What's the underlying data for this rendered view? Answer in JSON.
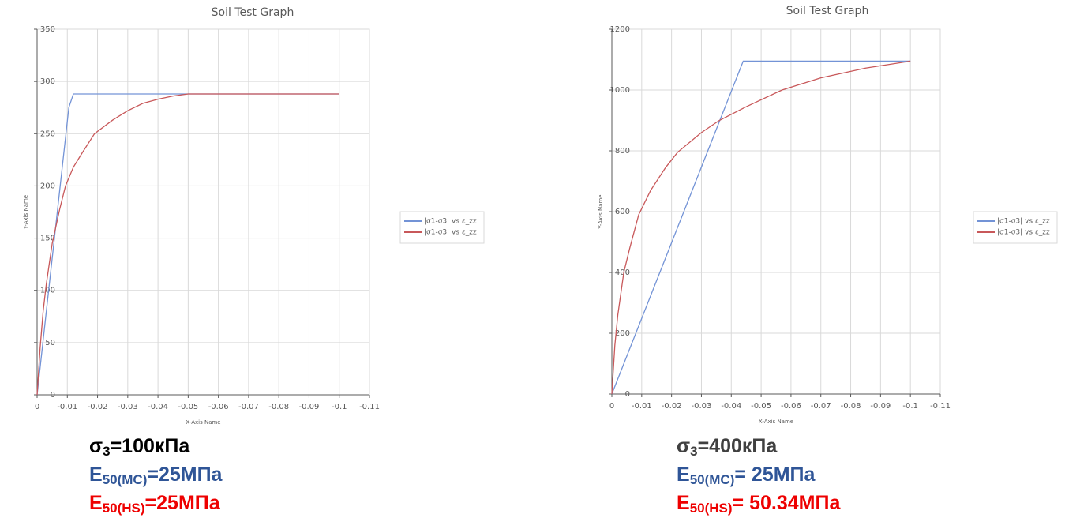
{
  "chart_data": [
    {
      "type": "line",
      "title": "Soil Test Graph",
      "x_label": "X-Axis Name",
      "y_label": "Y-Axis Name",
      "xlim": [
        0,
        -0.11
      ],
      "xticks": [
        0,
        -0.01,
        -0.02,
        -0.03,
        -0.04,
        -0.05,
        -0.06,
        -0.07,
        -0.08,
        -0.09,
        -0.1,
        -0.11
      ],
      "ylim": [
        0,
        350
      ],
      "yticks": [
        0,
        50,
        100,
        150,
        200,
        250,
        300,
        350
      ],
      "grid": true,
      "legend": "right",
      "series": [
        {
          "name": "|σ1-σ3| vs ε_zz",
          "color": "#7393d6",
          "x": [
            0,
            -0.0105,
            -0.012,
            -0.1
          ],
          "values": [
            0,
            275,
            288,
            288
          ]
        },
        {
          "name": "|σ1-σ3| vs ε_zz",
          "color": "#c8585a",
          "x": [
            0,
            -0.001,
            -0.002,
            -0.003,
            -0.005,
            -0.0075,
            -0.0094,
            -0.012,
            -0.015,
            -0.019,
            -0.025,
            -0.03,
            -0.035,
            -0.04,
            -0.045,
            -0.05,
            -0.1
          ],
          "values": [
            0,
            45,
            80,
            105,
            145,
            178,
            200,
            218,
            232,
            250,
            263,
            272,
            279,
            283,
            286,
            288,
            288
          ]
        }
      ],
      "notes": [
        {
          "symbol": "σ",
          "sub": "3",
          "text": "=100кПа",
          "color": "#000000"
        },
        {
          "symbol": "E",
          "sub": "50(MC)",
          "text": "=25МПа",
          "color": "#2f5597"
        },
        {
          "symbol": "E",
          "sub": "50(HS)",
          "text": "=25МПа",
          "color": "#ee0000"
        }
      ]
    },
    {
      "type": "line",
      "title": "Soil Test Graph",
      "x_label": "X-Axis Name",
      "y_label": "Y-Axis Name",
      "xlim": [
        0,
        -0.11
      ],
      "xticks": [
        0,
        -0.01,
        -0.02,
        -0.03,
        -0.04,
        -0.05,
        -0.06,
        -0.07,
        -0.08,
        -0.09,
        -0.1,
        -0.11
      ],
      "ylim": [
        0,
        1200
      ],
      "yticks": [
        0,
        200,
        400,
        600,
        800,
        1000,
        1200
      ],
      "grid": true,
      "legend": "right",
      "series": [
        {
          "name": "|σ1-σ3| vs ε_zz",
          "color": "#7393d6",
          "x": [
            0,
            -0.044,
            -0.1
          ],
          "values": [
            0,
            1095,
            1095
          ]
        },
        {
          "name": "|σ1-σ3| vs ε_zz",
          "color": "#c8585a",
          "x": [
            0,
            -0.001,
            -0.002,
            -0.004,
            -0.006,
            -0.009,
            -0.013,
            -0.018,
            -0.022,
            -0.03,
            -0.036,
            -0.045,
            -0.057,
            -0.07,
            -0.085,
            -0.1
          ],
          "values": [
            0,
            160,
            260,
            400,
            480,
            590,
            670,
            745,
            795,
            860,
            900,
            945,
            1000,
            1040,
            1072,
            1095
          ]
        }
      ],
      "notes": [
        {
          "symbol": "σ",
          "sub": "3",
          "text": "=400кПа",
          "color": "#404040"
        },
        {
          "symbol": "E",
          "sub": "50(MC)",
          "text": "= 25МПа",
          "color": "#2f5597"
        },
        {
          "symbol": "E",
          "sub": "50(HS)",
          "text": "= 50.34МПа",
          "color": "#ee0000"
        }
      ]
    }
  ]
}
